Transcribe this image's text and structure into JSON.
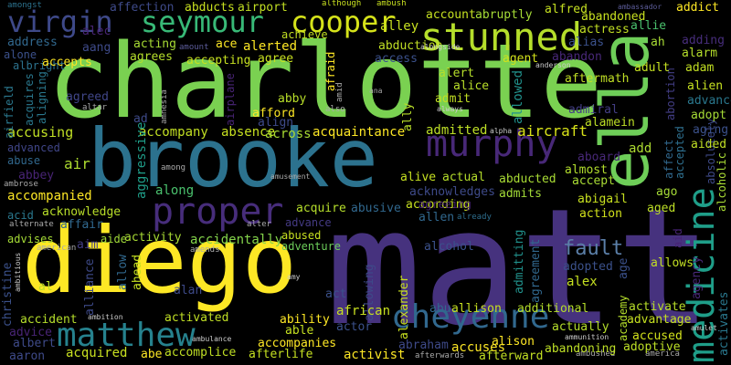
{
  "palette": {
    "background": "#000000",
    "purple": "#440154",
    "indigo": "#3b528b",
    "blue": "#31688e",
    "teal": "#21918c",
    "green": "#35b779",
    "lime": "#5ec962",
    "yellow": "#fde725"
  },
  "words": {
    "charlotte": "charlotte",
    "matt": "matt",
    "brooke": "brooke",
    "diego": "diego",
    "ella": "ella",
    "medicine": "medicine",
    "stunned": "stunned",
    "murphy": "murphy",
    "proper": "proper",
    "cheyenne": "cheyenne",
    "matthew": "matthew",
    "virgin": "virgin",
    "seymour": "seymour",
    "cooper": "cooper",
    "fault": "fault",
    "adopted": "adopted",
    "aircraft": "aircraft",
    "admitted": "admitted",
    "acquaintance": "acquaintance",
    "accompany": "accompany",
    "absence": "absence",
    "across": "across",
    "accusing": "accusing",
    "advanced": "advanced",
    "abuse": "abuse",
    "air": "air",
    "aggressive": "aggressive",
    "along": "along",
    "abbey": "abbey",
    "accompanied": "accompanied",
    "acknowledge": "acknowledge",
    "affair": "affair",
    "acid": "acid",
    "advises": "advises",
    "aim": "aim",
    "aide": "aide",
    "activity": "activity",
    "accidentally": "accidentally",
    "abused": "abused",
    "adventure": "adventure",
    "acquire": "acquire",
    "abusive": "abusive",
    "according": "according",
    "acknowledges": "acknowledges",
    "admits": "admits",
    "allen": "allen",
    "abducted": "abducted",
    "alive": "alive",
    "actual": "actual",
    "almost": "almost",
    "aboard": "aboard",
    "accept": "accept",
    "abigail": "abigail",
    "action": "action",
    "aged": "aged",
    "ago": "ago",
    "add": "add",
    "affect": "affect",
    "accepted": "accepted",
    "absolutely": "absolutely",
    "alcoholic": "alcoholic",
    "aided": "aided",
    "aging": "aging",
    "adopt": "adopt",
    "advance": "advance",
    "alien": "alien",
    "abortion": "abortion",
    "alarm": "alarm",
    "adam": "adam",
    "adult": "adult",
    "aftermath": "aftermath",
    "admiral": "admiral",
    "alamein": "alamein",
    "allowed": "allowed",
    "alice": "alice",
    "admit": "admit",
    "alert": "alert",
    "agent": "agent",
    "abandon": "abandon",
    "access": "access",
    "abduction": "abduction",
    "alley": "alley",
    "account": "account",
    "abruptly": "abruptly",
    "alfred": "alfred",
    "abandoned": "abandoned",
    "actress": "actress",
    "allie": "allie",
    "alias": "alias",
    "addict": "addict",
    "adding": "adding",
    "ah": "ah",
    "amongst": "amongst",
    "affection": "affection",
    "abducts": "abducts",
    "airport": "airport",
    "although": "although",
    "ambush": "ambush",
    "ambassador": "ambassador",
    "alec": "alec",
    "address": "address",
    "aang": "aang",
    "alone": "alone",
    "albright": "albright",
    "accepts": "accepts",
    "acting": "acting",
    "ace": "ace",
    "alerted": "alerted",
    "achieve": "achieve",
    "agrees": "agrees",
    "accepting": "accepting",
    "agree": "agree",
    "amount": "amount",
    "alongside": "alongside",
    "airfield": "airfield",
    "acquires": "acquires",
    "aligning": "aligning",
    "agreed": "agreed",
    "altar": "altar",
    "ad": "ad",
    "amnesia": "amnesia",
    "airplane": "airplane",
    "abby": "abby",
    "afford": "afford",
    "align": "align",
    "afraid": "afraid",
    "amid": "amid",
    "also": "also",
    "ana": "ana",
    "ally": "ally",
    "always": "always",
    "alpha": "alpha",
    "anderson": "anderson",
    "amusement": "amusement",
    "among": "among",
    "ambrose": "ambrose",
    "agreeing": "agreeing",
    "already": "already",
    "alternate": "alternate",
    "alter": "alter",
    "american": "american",
    "amends": "amends",
    "alcohol": "alcohol",
    "admitting": "admitting",
    "agreement": "agreement",
    "alex": "alex",
    "agency": "agency",
    "allows": "allows",
    "age": "age",
    "aid": "aid",
    "amulet": "amulet",
    "america": "america",
    "activates": "activates",
    "advantage": "advantage",
    "activate": "activate",
    "academy": "academy",
    "accused": "accused",
    "adoptive": "adoptive",
    "actually": "actually",
    "ammunition": "ammunition",
    "ambushed": "ambushed",
    "additional": "additional",
    "allison": "allison",
    "abu": "abu",
    "alexander": "alexander",
    "allowing": "allowing",
    "act": "act",
    "african": "african",
    "actor": "actor",
    "alison": "alison",
    "accuses": "accuses",
    "abraham": "abraham",
    "afterward": "afterward",
    "abandoning": "abandoning",
    "activist": "activist",
    "afterwards": "afterwards",
    "accompanies": "accompanies",
    "ability": "ability",
    "able": "able",
    "afterlife": "afterlife",
    "amy": "amy",
    "alan": "alan",
    "activated": "activated",
    "accomplice": "accomplice",
    "abe": "abe",
    "ambulance": "ambulance",
    "ambition": "ambition",
    "allow": "allow",
    "ahead": "ahead",
    "alliance": "alliance",
    "accident": "accident",
    "advice": "advice",
    "aaron": "aaron",
    "acquired": "acquired",
    "albert": "albert",
    "al": "al",
    "christine": "christine",
    "ambitious": "ambitious"
  }
}
